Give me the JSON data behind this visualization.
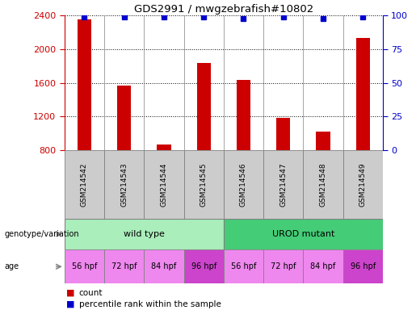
{
  "title": "GDS2991 / mwgzebrafish#10802",
  "samples": [
    "GSM214542",
    "GSM214543",
    "GSM214544",
    "GSM214545",
    "GSM214546",
    "GSM214547",
    "GSM214548",
    "GSM214549"
  ],
  "counts": [
    2350,
    1570,
    870,
    1840,
    1640,
    1185,
    1020,
    2130
  ],
  "percentile_ranks": [
    99,
    99,
    99,
    99,
    98,
    99,
    98,
    99
  ],
  "ylim_left": [
    800,
    2400
  ],
  "ylim_right": [
    0,
    100
  ],
  "yticks_left": [
    800,
    1200,
    1600,
    2000,
    2400
  ],
  "yticks_right": [
    0,
    25,
    50,
    75,
    100
  ],
  "bar_color": "#cc0000",
  "dot_color": "#0000cc",
  "left_tick_color": "#cc0000",
  "right_tick_color": "#0000cc",
  "genotype_groups": [
    {
      "label": "wild type",
      "start": 0,
      "end": 4,
      "color": "#aaeebb"
    },
    {
      "label": "UROD mutant",
      "start": 4,
      "end": 8,
      "color": "#44cc77"
    }
  ],
  "age_labels": [
    "56 hpf",
    "72 hpf",
    "84 hpf",
    "96 hpf",
    "56 hpf",
    "72 hpf",
    "84 hpf",
    "96 hpf"
  ],
  "age_colors": [
    "#ee88ee",
    "#ee88ee",
    "#ee88ee",
    "#cc44cc",
    "#ee88ee",
    "#ee88ee",
    "#ee88ee",
    "#cc44cc"
  ],
  "sample_box_color": "#cccccc",
  "legend_bar_color": "#cc0000",
  "legend_dot_color": "#0000cc",
  "legend_count_label": "count",
  "legend_percentile_label": "percentile rank within the sample",
  "genotype_label": "genotype/variation",
  "age_label": "age",
  "fig_width": 5.15,
  "fig_height": 3.84,
  "dpi": 100
}
